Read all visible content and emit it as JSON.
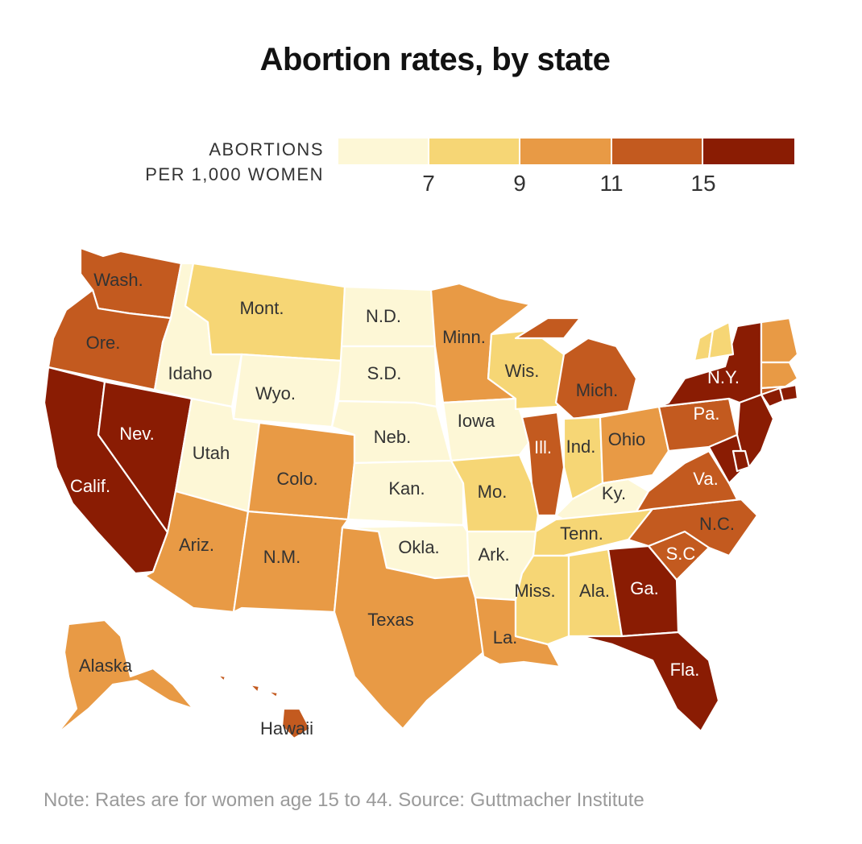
{
  "title": "Abortion rates, by state",
  "legend": {
    "label_line1": "ABORTIONS",
    "label_line2": "PER 1,000 WOMEN",
    "colors": [
      "#fdf7d6",
      "#f6d675",
      "#e89a45",
      "#c35a1f",
      "#8a1c03"
    ],
    "ticks": [
      "7",
      "9",
      "11",
      "15"
    ]
  },
  "note": "Note: Rates are for women age 15 to 44. Source: Guttmacher Institute",
  "states": [
    {
      "label": "Wash.",
      "bin": 3
    },
    {
      "label": "Ore.",
      "bin": 3
    },
    {
      "label": "Calif.",
      "bin": 4
    },
    {
      "label": "Nev.",
      "bin": 4
    },
    {
      "label": "Idaho",
      "bin": 0
    },
    {
      "label": "Mont.",
      "bin": 1
    },
    {
      "label": "Wyo.",
      "bin": 0
    },
    {
      "label": "Utah",
      "bin": 0
    },
    {
      "label": "Colo.",
      "bin": 2
    },
    {
      "label": "Ariz.",
      "bin": 2
    },
    {
      "label": "N.M.",
      "bin": 2
    },
    {
      "label": "N.D.",
      "bin": 0
    },
    {
      "label": "S.D.",
      "bin": 0
    },
    {
      "label": "Neb.",
      "bin": 0
    },
    {
      "label": "Kan.",
      "bin": 0
    },
    {
      "label": "Okla.",
      "bin": 0
    },
    {
      "label": "Texas",
      "bin": 2
    },
    {
      "label": "Minn.",
      "bin": 2
    },
    {
      "label": "Iowa",
      "bin": 0
    },
    {
      "label": "Mo.",
      "bin": 1
    },
    {
      "label": "Ark.",
      "bin": 0
    },
    {
      "label": "La.",
      "bin": 2
    },
    {
      "label": "Wis.",
      "bin": 1
    },
    {
      "label": "Ill.",
      "bin": 3
    },
    {
      "label": "Mich.",
      "bin": 3
    },
    {
      "label": "Ind.",
      "bin": 1
    },
    {
      "label": "Ohio",
      "bin": 2
    },
    {
      "label": "Ky.",
      "bin": 0
    },
    {
      "label": "Tenn.",
      "bin": 1
    },
    {
      "label": "Miss.",
      "bin": 1
    },
    {
      "label": "Ala.",
      "bin": 1
    },
    {
      "label": "Ga.",
      "bin": 4
    },
    {
      "label": "Fla.",
      "bin": 4
    },
    {
      "label": "S.C.",
      "bin": 3
    },
    {
      "label": "N.C.",
      "bin": 3
    },
    {
      "label": "Va.",
      "bin": 3
    },
    {
      "label": "Pa.",
      "bin": 3
    },
    {
      "label": "N.Y.",
      "bin": 4
    },
    {
      "label": "Alaska",
      "bin": 2
    },
    {
      "label": "Hawaii",
      "bin": 3
    },
    {
      "label": "",
      "bin": 1
    },
    {
      "label": "",
      "bin": 1
    },
    {
      "label": "",
      "bin": 2
    },
    {
      "label": "",
      "bin": 2
    },
    {
      "label": "",
      "bin": 3
    },
    {
      "label": "",
      "bin": 4
    },
    {
      "label": "",
      "bin": 4
    },
    {
      "label": "",
      "bin": 4
    },
    {
      "label": "",
      "bin": 4
    },
    {
      "label": "",
      "bin": 4
    }
  ]
}
